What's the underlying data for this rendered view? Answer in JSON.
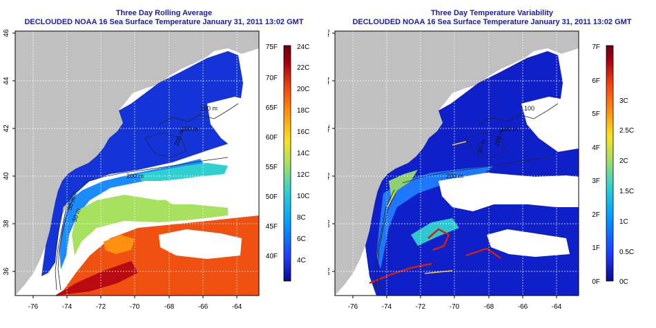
{
  "left_panel": {
    "title": "Three Day Rolling Average",
    "subtitle": "DECLOUDED NOAA 16 Sea Surface Temperature January 31, 2011 13:02 GMT",
    "colorbar": {
      "f_labels": [
        "75F",
        "70F",
        "65F",
        "60F",
        "55F",
        "50F",
        "45F",
        "40F"
      ],
      "c_labels": [
        "24C",
        "22C",
        "20C",
        "18C",
        "16C",
        "14C",
        "12C",
        "10C",
        "8C",
        "6C",
        "4C"
      ],
      "stops": [
        "#0a0a8a",
        "#1e3cff",
        "#00a0ff",
        "#30d0d0",
        "#a8e060",
        "#ffe020",
        "#ff9010",
        "#f04010",
        "#a00010",
        "#6a0010"
      ]
    },
    "map_labels": [
      "100 m",
      "100 m",
      "200 m",
      "200 m",
      "50 m",
      "50 m"
    ]
  },
  "right_panel": {
    "title": "Three Day Temperature Variability",
    "subtitle": "DECLOUDED NOAA 16 Sea Surface Temperature January 31, 2011 13:02 GMT",
    "colorbar": {
      "f_labels": [
        "7F",
        "6F",
        "5F",
        "4F",
        "3F",
        "2F",
        "1F",
        "0F"
      ],
      "c_labels": [
        "3C",
        "2.5C",
        "2C",
        "1.5C",
        "1C",
        "0.5C",
        "0C"
      ],
      "stops": [
        "#0a0a8a",
        "#1e3cff",
        "#00a0ff",
        "#30d0d0",
        "#a8e060",
        "#ffe020",
        "#ff9010",
        "#f04010",
        "#a00010",
        "#6a0010"
      ]
    },
    "map_labels": [
      "100",
      "100 m",
      "200 m",
      "200 m",
      "50 m"
    ]
  },
  "axes": {
    "x_ticks": [
      "-76",
      "-74",
      "-72",
      "-70",
      "-68",
      "-66",
      "-64"
    ],
    "y_ticks": [
      "46",
      "44",
      "42",
      "40",
      "38",
      "36"
    ]
  },
  "colors": {
    "land": "#c0c0c0",
    "cloud": "#ffffff",
    "title": "#1a1aa6"
  }
}
